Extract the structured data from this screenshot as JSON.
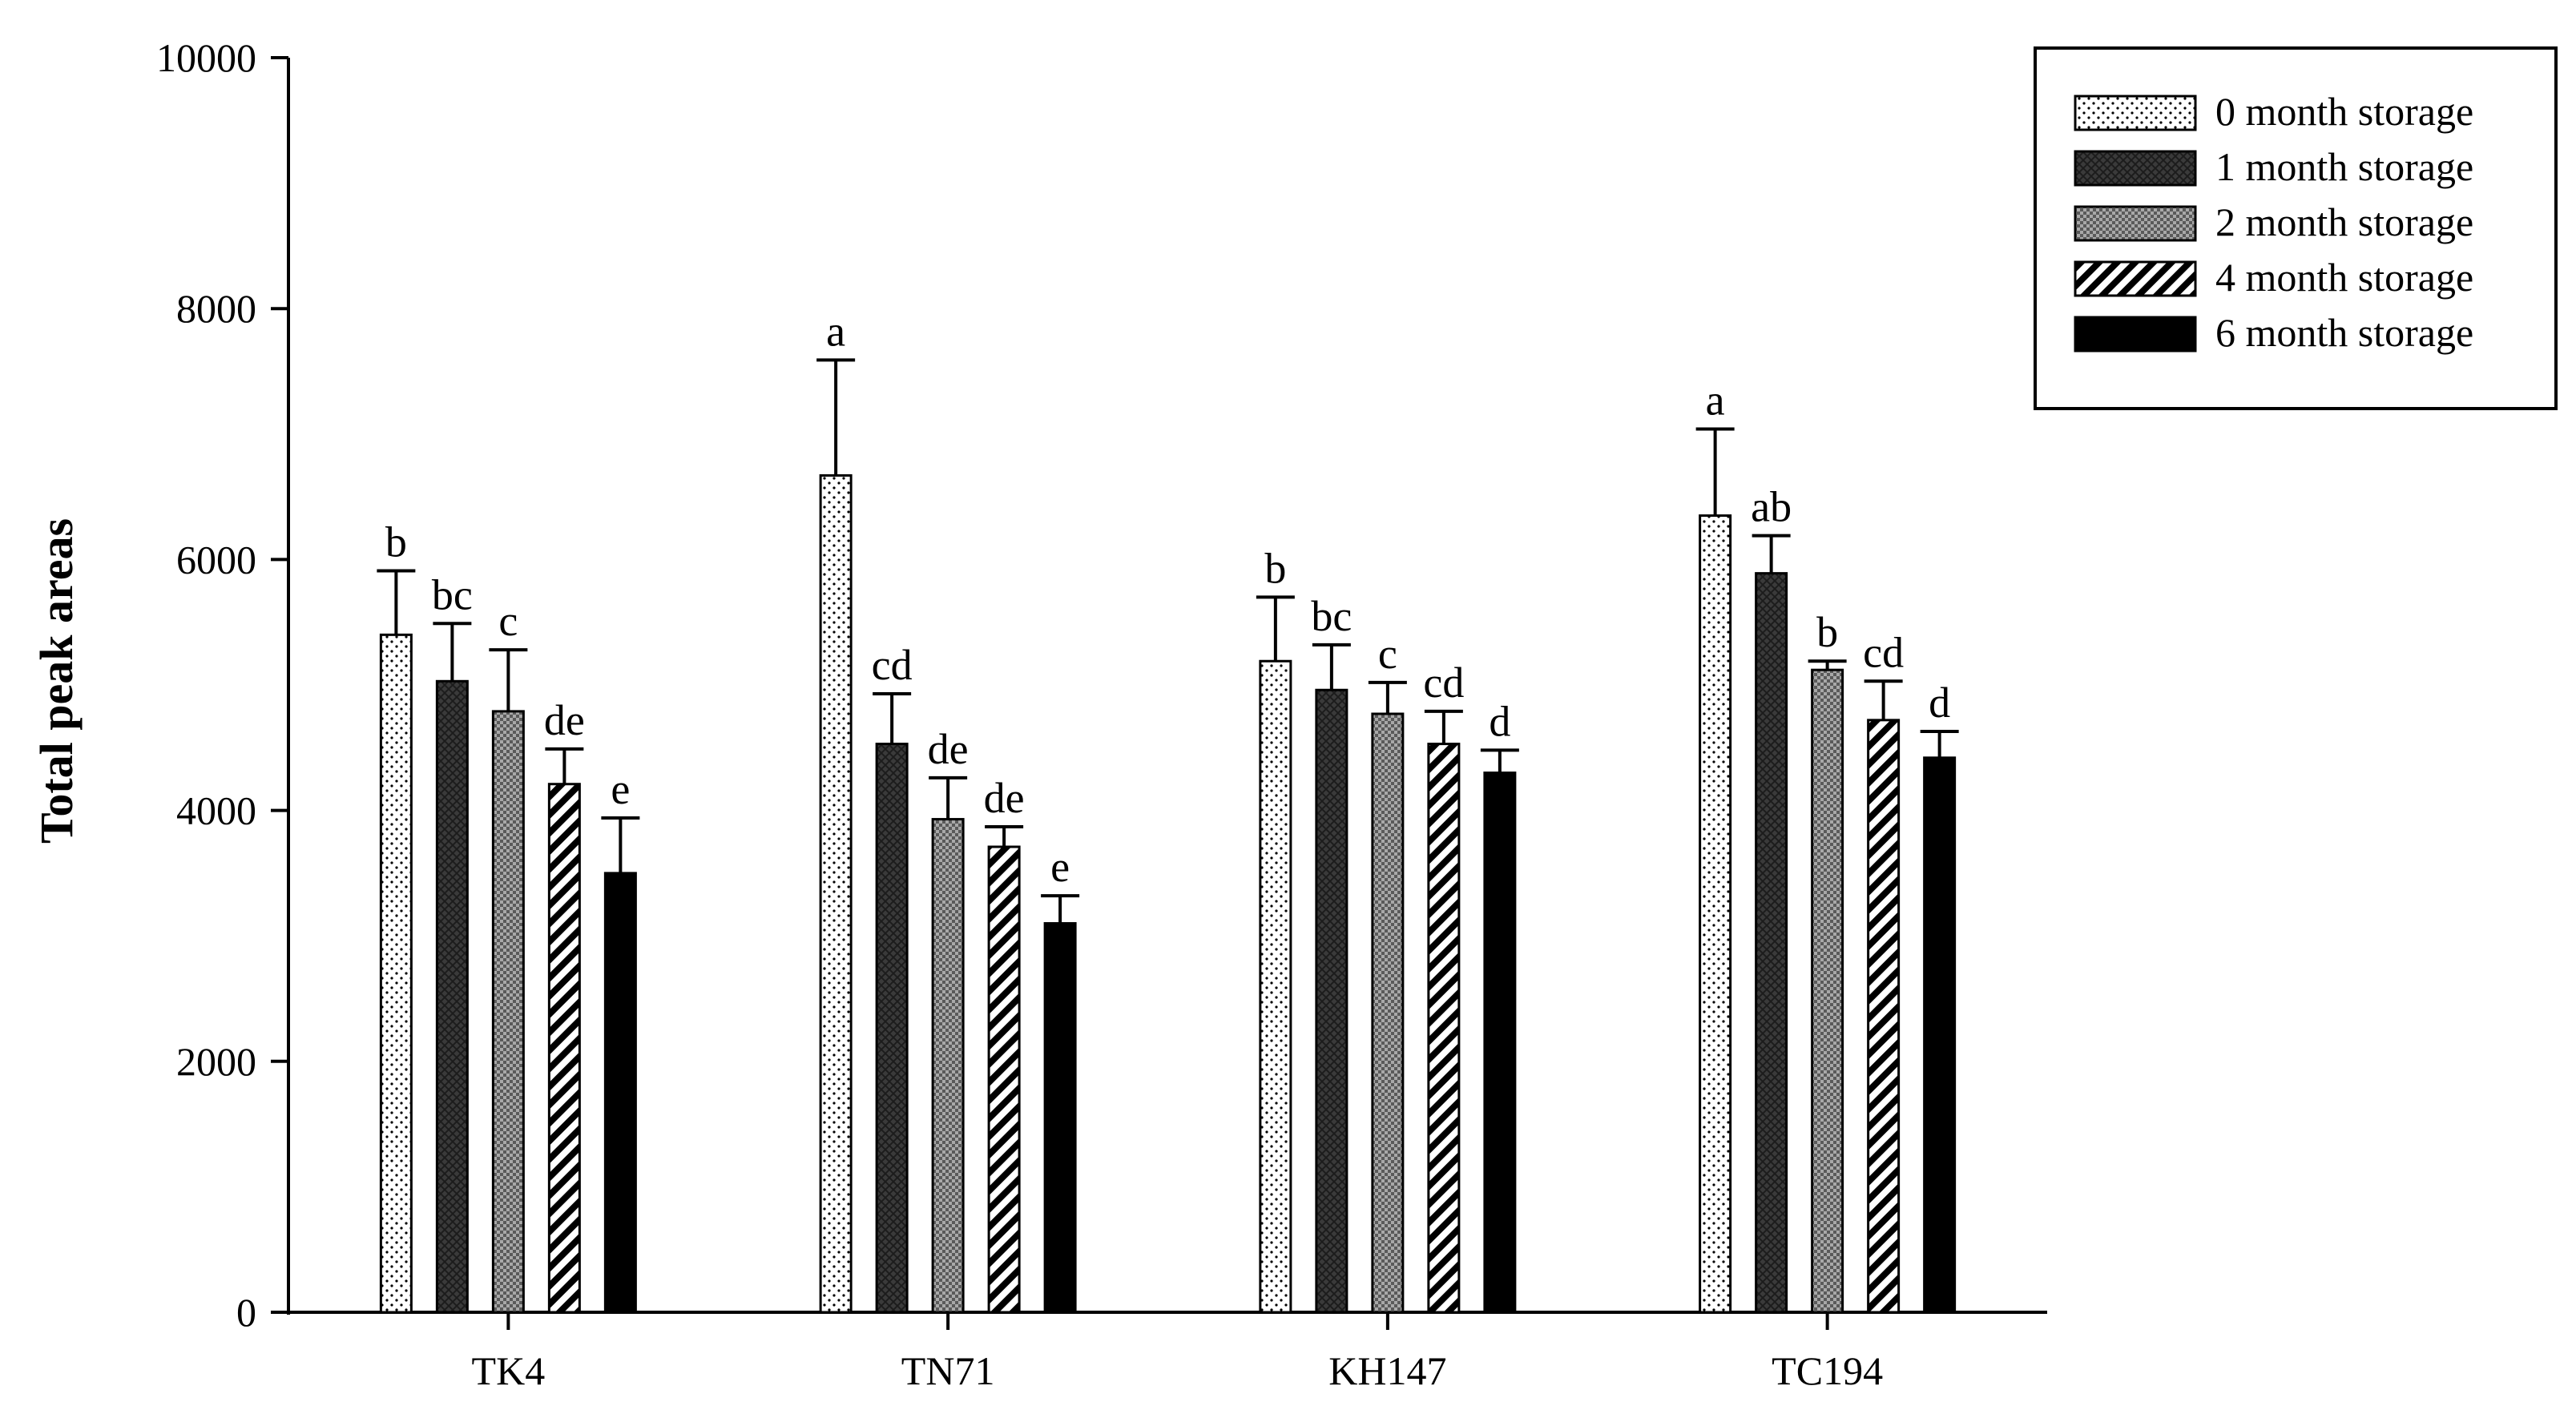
{
  "chart_data": {
    "type": "bar",
    "ylabel": "Total peak areas",
    "xlabel": "",
    "ylim": [
      0,
      10000
    ],
    "yticks": [
      0,
      2000,
      4000,
      6000,
      8000,
      10000
    ],
    "ytick_labels": [
      "0",
      "2000",
      "4000",
      "6000",
      "8000",
      "10000"
    ],
    "categories": [
      "TK4",
      "TN71",
      "KH147",
      "TC194"
    ],
    "legend_position": "top-right",
    "grid": false,
    "error_bars": "upper",
    "series": [
      {
        "name": "0 month storage",
        "pattern": "dots-white",
        "values": [
          5400,
          6670,
          5190,
          6350
        ],
        "errors": [
          510,
          920,
          510,
          690
        ],
        "letters": [
          "b",
          "a",
          "b",
          "a"
        ]
      },
      {
        "name": "1 month storage",
        "pattern": "dark-crosshatch",
        "values": [
          5030,
          4530,
          4960,
          5890
        ],
        "errors": [
          460,
          400,
          360,
          300
        ],
        "letters": [
          "bc",
          "cd",
          "bc",
          "ab"
        ]
      },
      {
        "name": "2 month storage",
        "pattern": "grey-checker",
        "values": [
          4790,
          3930,
          4770,
          5120
        ],
        "errors": [
          490,
          330,
          250,
          70
        ],
        "letters": [
          "c",
          "de",
          "c",
          "b"
        ]
      },
      {
        "name": "4 month storage",
        "pattern": "diagonal-stripes",
        "values": [
          4210,
          3710,
          4530,
          4720
        ],
        "errors": [
          280,
          160,
          260,
          310
        ],
        "letters": [
          "de",
          "de",
          "cd",
          "cd"
        ]
      },
      {
        "name": "6 month storage",
        "pattern": "solid-black",
        "values": [
          3500,
          3100,
          4300,
          4420
        ],
        "errors": [
          440,
          220,
          180,
          210
        ],
        "letters": [
          "e",
          "e",
          "d",
          "d"
        ]
      }
    ]
  }
}
